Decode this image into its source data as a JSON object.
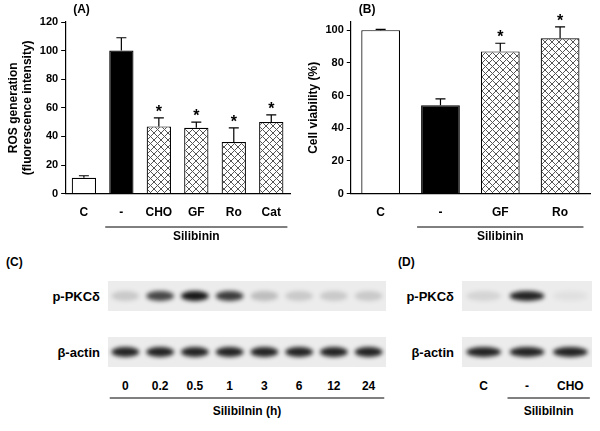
{
  "chart_data": [
    {
      "type": "bar",
      "panel": "(A)",
      "y_label": [
        "ROS generation",
        "(fluorescence intensity)"
      ],
      "categories": [
        "C",
        "-",
        "CHO",
        "GF",
        "Ro",
        "Cat"
      ],
      "values": [
        11,
        100,
        47,
        46,
        36,
        50
      ],
      "errors": [
        1.5,
        9,
        6,
        4,
        10,
        5
      ],
      "colors": [
        "#ffffff",
        "#000000",
        "#555555",
        "#555555",
        "#555555",
        "#555555"
      ],
      "ylim": [
        0,
        120
      ],
      "yticks": [
        0,
        20,
        40,
        60,
        80,
        100,
        120
      ],
      "grid": false,
      "annotations": [
        {
          "category": "CHO",
          "text": "*"
        },
        {
          "category": "GF",
          "text": "*"
        },
        {
          "category": "Ro",
          "text": "*"
        },
        {
          "category": "Cat",
          "text": "*"
        }
      ],
      "group": {
        "label": "Silibinin",
        "categories": [
          "-",
          "CHO",
          "GF",
          "Ro",
          "Cat"
        ]
      }
    },
    {
      "type": "bar",
      "panel": "(B)",
      "y_label": "Cell viability (%)",
      "categories": [
        "C",
        "-",
        "GF",
        "Ro"
      ],
      "values": [
        100,
        54,
        87,
        95
      ],
      "errors": [
        0.5,
        4,
        5,
        7
      ],
      "colors": [
        "#ffffff",
        "#000000",
        "#555555",
        "#555555"
      ],
      "ylim": [
        0,
        105
      ],
      "yticks": [
        0,
        20,
        40,
        60,
        80,
        100
      ],
      "grid": false,
      "annotations": [
        {
          "category": "GF",
          "text": "*"
        },
        {
          "category": "Ro",
          "text": "*"
        }
      ],
      "group": {
        "label": "Silibinin",
        "categories": [
          "-",
          "GF",
          "Ro"
        ]
      }
    }
  ],
  "blots": [
    {
      "panel": "(C)",
      "rows": [
        {
          "label": "p-PKCδ",
          "band_intensity": [
            0.15,
            0.7,
            0.9,
            0.75,
            0.2,
            0.15,
            0.15,
            0.15
          ]
        },
        {
          "label": "β-actin",
          "band_intensity": [
            0.85,
            0.85,
            0.85,
            0.85,
            0.85,
            0.85,
            0.85,
            0.85
          ]
        }
      ],
      "lanes": [
        "0",
        "0.2",
        "0.5",
        "1",
        "3",
        "6",
        "12",
        "24"
      ],
      "group": {
        "label": "Silibilnin (h)",
        "lanes": [
          "0",
          "0.2",
          "0.5",
          "1",
          "3",
          "6",
          "12",
          "24"
        ]
      }
    },
    {
      "panel": "(D)",
      "rows": [
        {
          "label": "p-PKCδ",
          "band_intensity": [
            0.1,
            0.85,
            0.05
          ]
        },
        {
          "label": "β-actin",
          "band_intensity": [
            0.85,
            0.85,
            0.85
          ]
        }
      ],
      "lanes": [
        "C",
        "-",
        "CHO"
      ],
      "group": {
        "label": "Silibilnin",
        "lanes": [
          "-",
          "CHO"
        ]
      }
    }
  ]
}
